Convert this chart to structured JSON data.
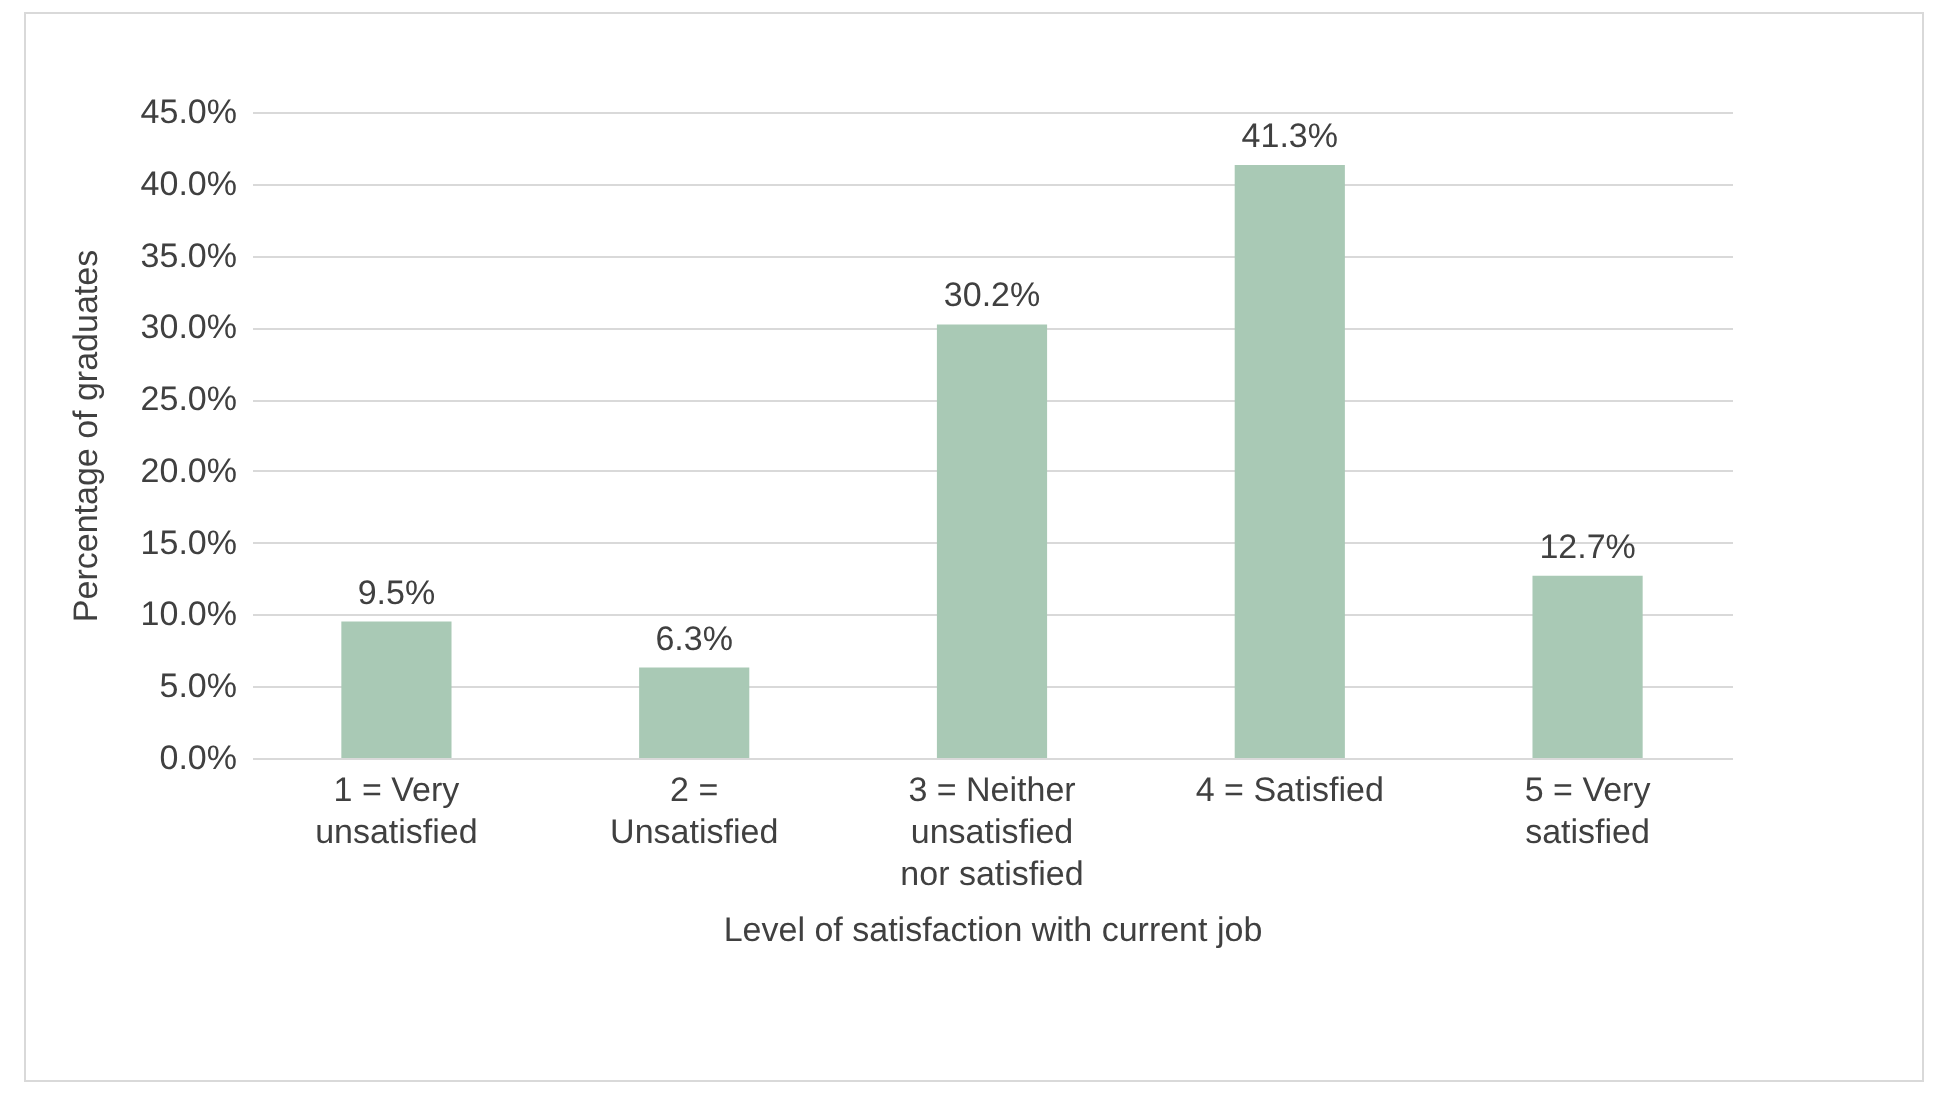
{
  "chart_data": {
    "type": "bar",
    "xlabel": "Level of satisfaction with current job",
    "ylabel": "Percentage of graduates",
    "categories": [
      "1 = Very unsatisfied",
      "2 = Unsatisfied",
      "3 = Neither unsatisfied nor satisfied",
      "4 = Satisfied",
      "5 = Very satisfied"
    ],
    "values": [
      9.5,
      6.3,
      30.2,
      41.3,
      12.7
    ],
    "value_labels": [
      "9.5%",
      "6.3%",
      "30.2%",
      "41.3%",
      "12.7%"
    ],
    "color": "#a9c9b5",
    "ylim": [
      0,
      45
    ],
    "yticks": [
      {
        "value": 0,
        "label": "0.0%"
      },
      {
        "value": 5,
        "label": "5.0%"
      },
      {
        "value": 10,
        "label": "10.0%"
      },
      {
        "value": 15,
        "label": "15.0%"
      },
      {
        "value": 20,
        "label": "20.0%"
      },
      {
        "value": 25,
        "label": "25.0%"
      },
      {
        "value": 30,
        "label": "30.0%"
      },
      {
        "value": 35,
        "label": "35.0%"
      },
      {
        "value": 40,
        "label": "40.0%"
      },
      {
        "value": 45,
        "label": "45.0%"
      }
    ],
    "grid": "y"
  }
}
